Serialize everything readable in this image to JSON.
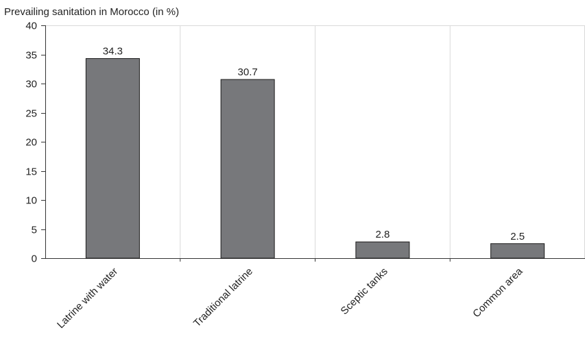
{
  "chart_data": {
    "type": "bar",
    "title": "Prevailing sanitation in Morocco (in %)",
    "xlabel": "",
    "ylabel": "",
    "categories": [
      "Latrine with water",
      "Traditional latrine",
      "Sceptic tanks",
      "Common area"
    ],
    "values": [
      34.3,
      30.7,
      2.8,
      2.5
    ],
    "value_labels": [
      "34.3",
      "30.7",
      "2.8",
      "2.5"
    ],
    "ylim": [
      0,
      40
    ],
    "yticks": [
      0,
      5,
      10,
      15,
      20,
      25,
      30,
      35,
      40
    ],
    "ytick_labels": [
      "0",
      "5",
      "10",
      "15",
      "20",
      "25",
      "30",
      "35",
      "40"
    ],
    "grid": "vertical category separators",
    "legend": "none",
    "colors": {
      "bar_fill": "#77787b",
      "bar_stroke": "#1a1a1a",
      "grid": "#d9d9d9",
      "axis": "#333333",
      "text": "#222222"
    }
  }
}
